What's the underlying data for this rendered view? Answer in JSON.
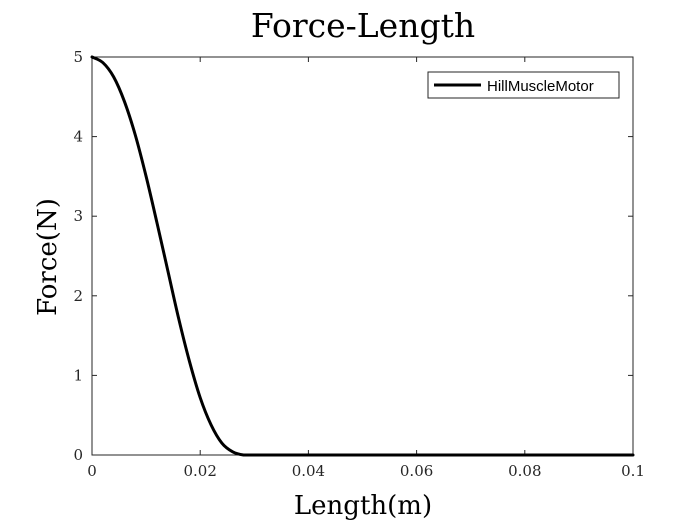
{
  "chart_data": {
    "type": "line",
    "title": "Force-Length",
    "xlabel": "Length(m)",
    "ylabel": "Force(N)",
    "xlim": [
      0,
      0.1
    ],
    "ylim": [
      0,
      5
    ],
    "xticks": [
      0,
      0.02,
      0.04,
      0.06,
      0.08,
      0.1
    ],
    "xtick_labels": [
      "0",
      "0.02",
      "0.04",
      "0.06",
      "0.08",
      "0.1"
    ],
    "yticks": [
      0,
      1,
      2,
      3,
      4,
      5
    ],
    "ytick_labels": [
      "0",
      "1",
      "2",
      "3",
      "4",
      "5"
    ],
    "grid": false,
    "legend_position": "top-right",
    "series": [
      {
        "name": "HillMuscleMotor",
        "color": "#000000",
        "x": [
          0,
          0.002,
          0.004,
          0.006,
          0.008,
          0.01,
          0.012,
          0.014,
          0.016,
          0.018,
          0.02,
          0.022,
          0.024,
          0.026,
          0.028,
          0.03,
          0.04,
          0.05,
          0.06,
          0.07,
          0.08,
          0.09,
          0.1
        ],
        "y": [
          5.0,
          4.93,
          4.75,
          4.44,
          4.02,
          3.5,
          2.92,
          2.32,
          1.72,
          1.18,
          0.72,
          0.38,
          0.15,
          0.04,
          0.0,
          0.0,
          0.0,
          0.0,
          0.0,
          0.0,
          0.0,
          0.0,
          0.0
        ]
      }
    ]
  }
}
